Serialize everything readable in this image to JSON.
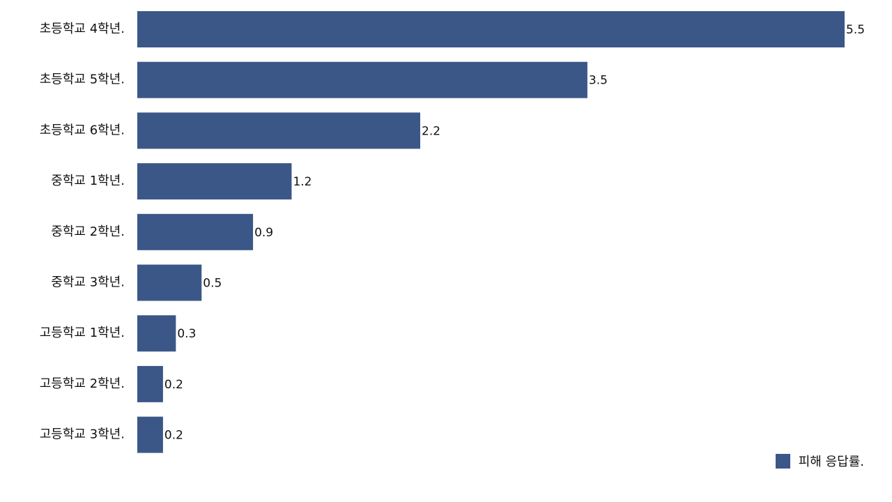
{
  "chart_data": {
    "type": "bar",
    "orientation": "horizontal",
    "categories": [
      "초등학교 4학년.",
      "초등학교 5학년.",
      "초등학교 6학년.",
      "중학교 1학년.",
      "중학교 2학년.",
      "중학교 3학년.",
      "고등학교 1학년.",
      "고등학교 2학년.",
      "고등학교 3학년."
    ],
    "series": [
      {
        "name": "피해 응답률.",
        "color": "#3b5787",
        "values": [
          5.5,
          3.5,
          2.2,
          1.2,
          0.9,
          0.5,
          0.3,
          0.2,
          0.2
        ],
        "value_labels": [
          "5.5",
          "3.5",
          "2.2",
          "1.2",
          "0.9",
          "0.5",
          "0.3",
          "0.2",
          "0.2"
        ]
      }
    ],
    "xlim": [
      0,
      5.5
    ],
    "grid": false,
    "legend_position": "bottom-right"
  }
}
